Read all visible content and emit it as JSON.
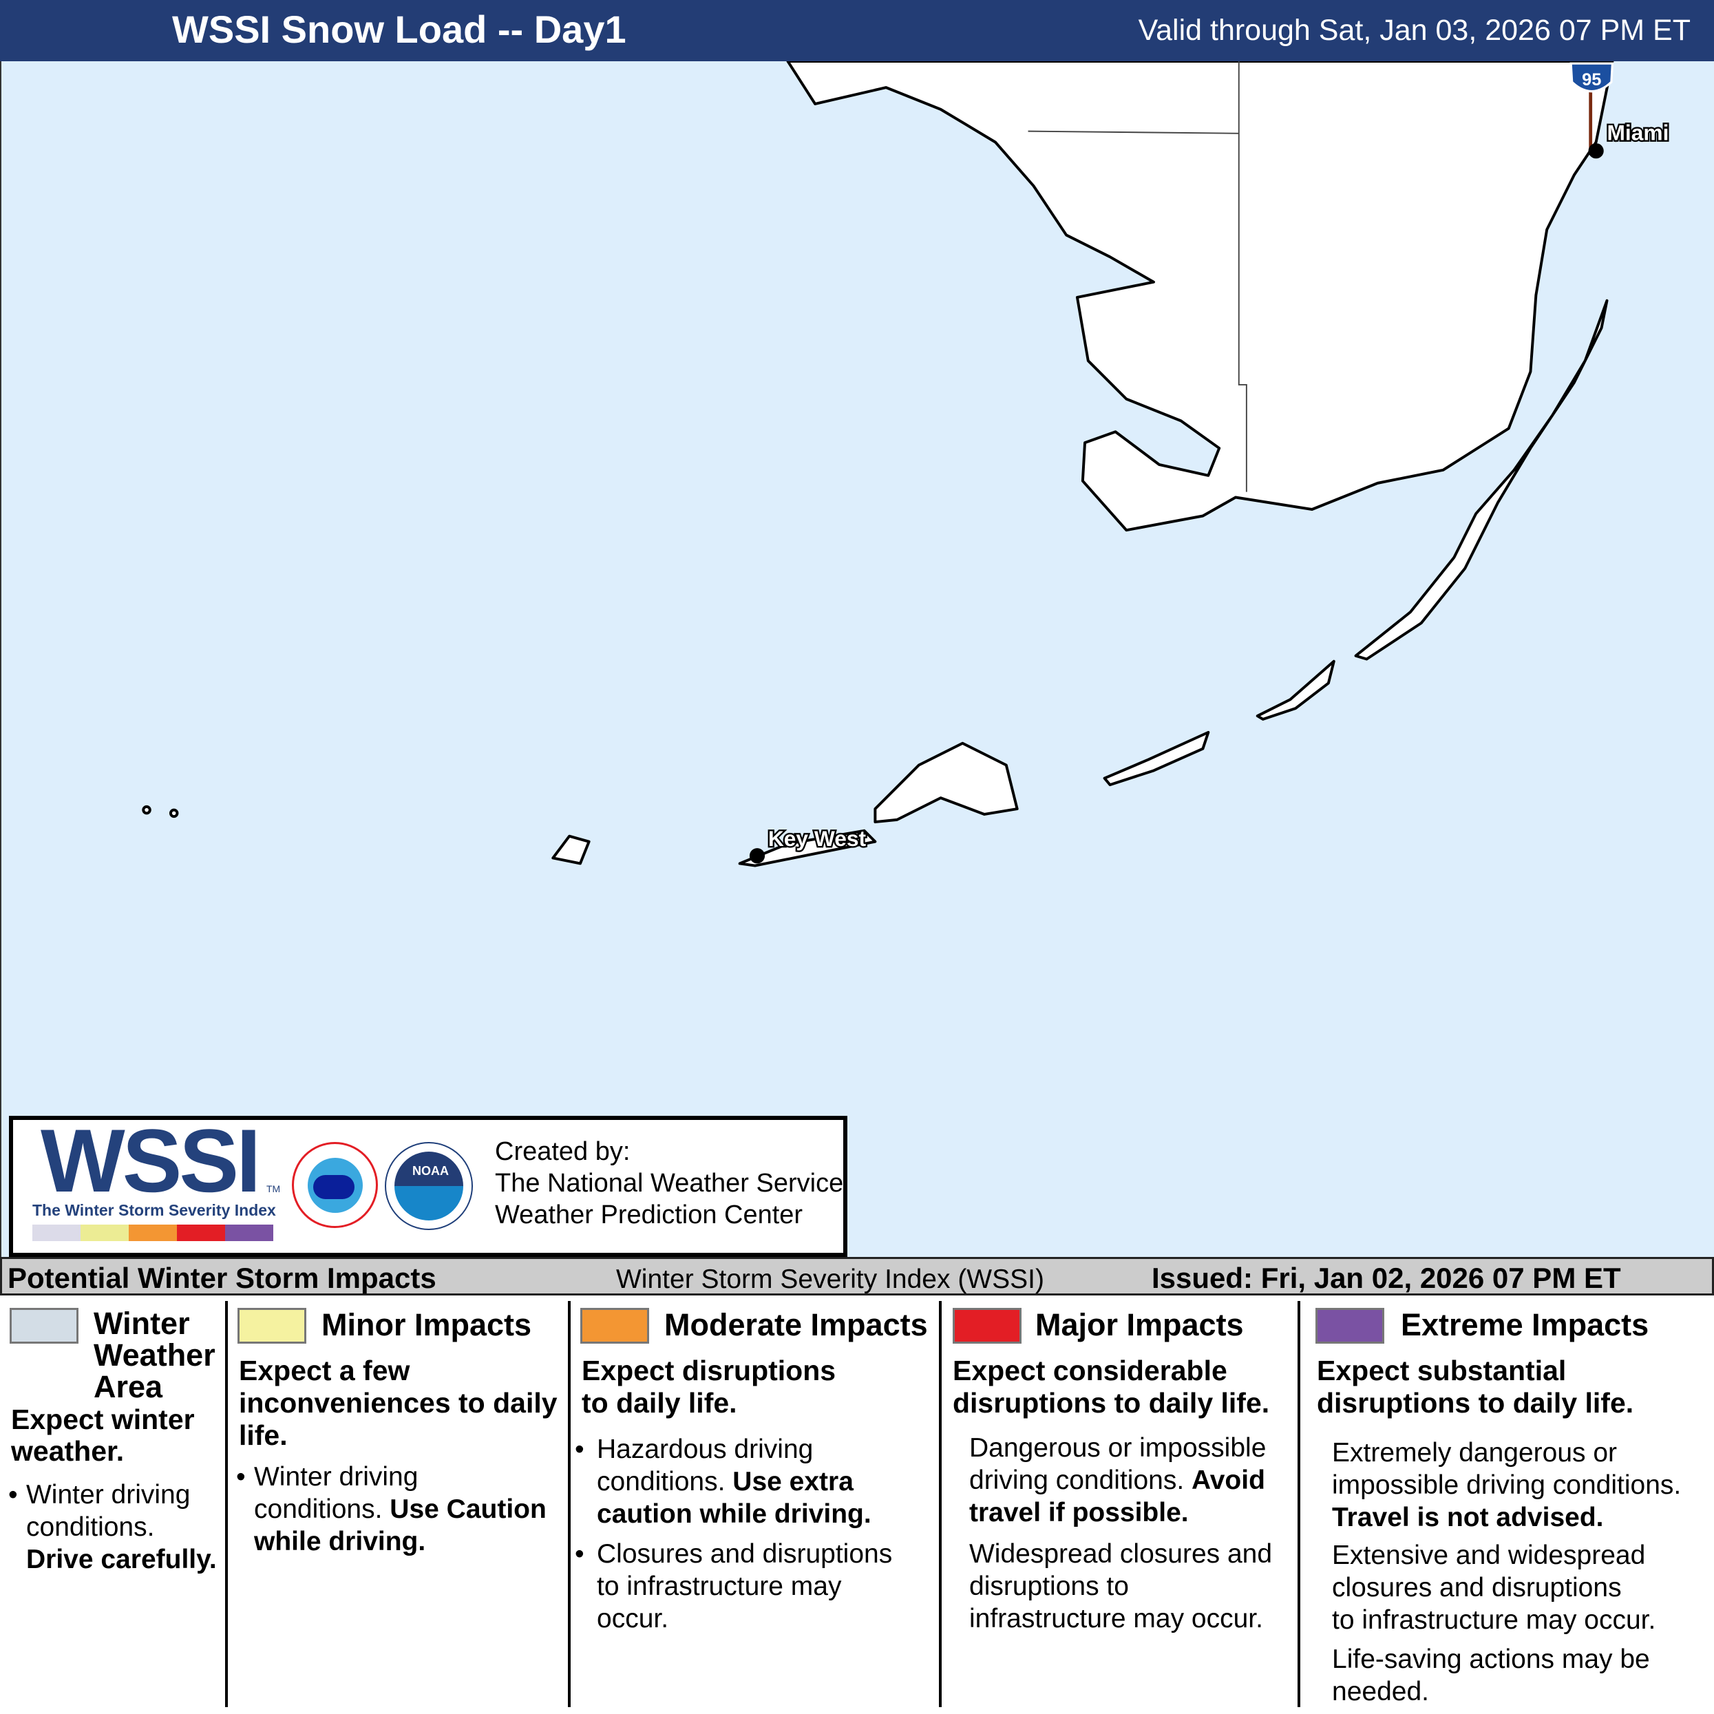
{
  "header": {
    "title": "WSSI Snow Load -- Day1",
    "valid": "Valid through Sat, Jan 03, 2026 07 PM ET"
  },
  "map": {
    "cities": [
      "Miami",
      "Key West"
    ],
    "highway_shield": "95",
    "water_color": "#ddeefc",
    "land_color": "#ffffff"
  },
  "logo": {
    "wssi": "WSSI",
    "wssi_tm": "TM",
    "wssi_subtitle": "The Winter Storm Severity Index",
    "nws_seal": "NATIONAL WEATHER SERVICE",
    "noaa_seal": "NOAA",
    "created_by": "Created by:",
    "org1": "The National Weather Service",
    "org2": "Weather Prediction Center"
  },
  "bar": {
    "left": "Potential Winter Storm Impacts",
    "center": "Winter Storm Severity Index (WSSI)",
    "issued": "Issued: Fri, Jan 02, 2026 07 PM ET"
  },
  "legend": [
    {
      "color": "#d3dde6",
      "title1": "Winter",
      "title2": "Weather",
      "title3": "Area",
      "sub1": "Expect winter",
      "sub2": "weather.",
      "b1": "Winter driving",
      "b2": "conditions.",
      "b3": "Drive carefully."
    },
    {
      "color": "#f5f2a0",
      "title": "Minor Impacts",
      "sub1": "Expect a few",
      "sub2": "inconveniences to daily",
      "sub3": "life.",
      "b1": "Winter driving",
      "b2": "conditions.",
      "b3": "Use Caution",
      "b4": "while driving."
    },
    {
      "color": "#f39633",
      "title": "Moderate Impacts",
      "sub1": "Expect disruptions",
      "sub2": "to daily life.",
      "b1": "Hazardous driving",
      "b2": "conditions.",
      "b3": "Use extra",
      "b4": "caution while driving.",
      "c1": "Closures and disruptions",
      "c2": "to infrastructure may",
      "c3": "occur."
    },
    {
      "color": "#e31e25",
      "title": "Major Impacts",
      "sub1": "Expect considerable",
      "sub2": "disruptions to daily life.",
      "b1": "Dangerous or impossible",
      "b2": "driving conditions.",
      "b3": "Avoid",
      "b4": "travel if possible.",
      "c1": "Widespread closures and",
      "c2": "disruptions to",
      "c3": "infrastructure may occur."
    },
    {
      "color": "#7a52a3",
      "title": "Extreme Impacts",
      "sub1": "Expect substantial",
      "sub2": "disruptions to daily life.",
      "b1": "Extremely dangerous or",
      "b2": "impossible driving conditions.",
      "b3": "Travel is not advised.",
      "c1": "Extensive and widespread",
      "c2": "closures and disruptions",
      "c3": "to infrastructure may occur.",
      "d1": "Life-saving actions may be",
      "d2": "needed."
    }
  ]
}
